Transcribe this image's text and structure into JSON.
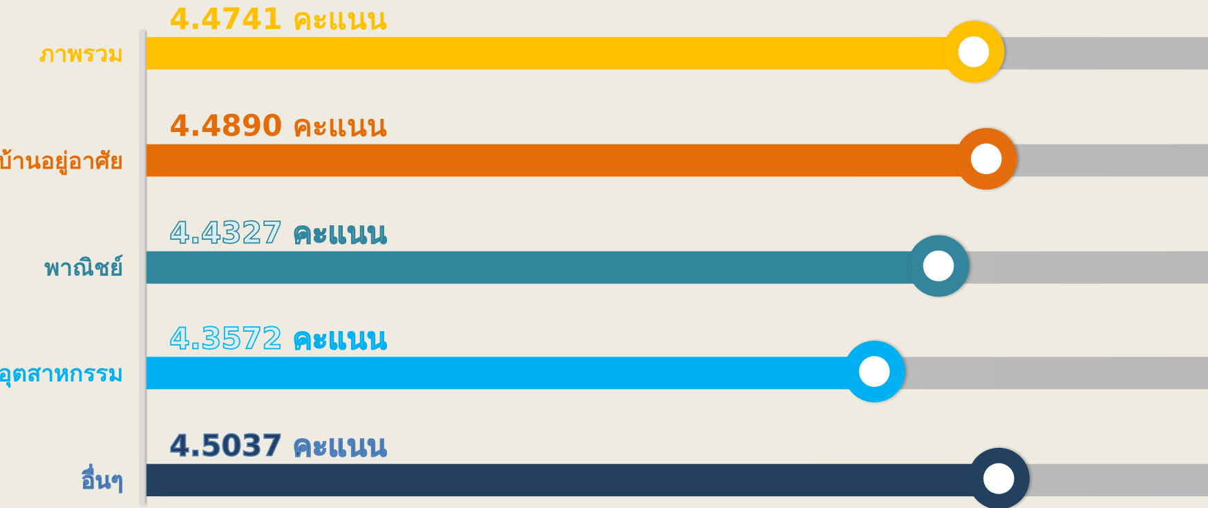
{
  "chart_data": {
    "type": "bar",
    "categories": [
      "ภาพรวม",
      "บ้านอยู่อาศัย",
      "พาณิชย์",
      "อุตสาหกรรม",
      "อื่นๆ"
    ],
    "values": [
      4.4741,
      4.489,
      4.4327,
      4.3572,
      4.5037
    ],
    "value_labels": [
      "4.4741 คะแนน",
      "4.4890 คะแนน",
      "4.4327 คะแนน",
      "4.3572 คะแนน",
      "4.5037 คะแนน"
    ],
    "colors": [
      "#ffc000",
      "#e36c09",
      "#31859c",
      "#00b0f0",
      "#243f60"
    ],
    "xlim": [
      3.5,
      4.75
    ]
  }
}
